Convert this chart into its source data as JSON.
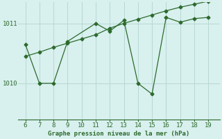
{
  "x_jagged": [
    6,
    7,
    8,
    9,
    11,
    12,
    13,
    14,
    15,
    16,
    17,
    18,
    19
  ],
  "y_jagged": [
    1010.65,
    1010.0,
    1010.0,
    1010.7,
    1011.0,
    1010.87,
    1011.05,
    1010.0,
    1009.82,
    1011.1,
    1011.02,
    1011.08,
    1011.1
  ],
  "x_smooth": [
    6,
    7,
    8,
    9,
    10,
    11,
    12,
    13,
    14,
    15,
    16,
    17,
    18,
    19
  ],
  "y_smooth": [
    1010.45,
    1010.52,
    1010.6,
    1010.67,
    1010.74,
    1010.81,
    1010.92,
    1011.0,
    1011.07,
    1011.14,
    1011.21,
    1011.27,
    1011.32,
    1011.37
  ],
  "line_color": "#2d6a2d",
  "bg_color": "#d8f0ee",
  "grid_color": "#b8d8d4",
  "xlabel": "Graphe pression niveau de la mer (hPa)",
  "yticks": [
    1010,
    1011
  ],
  "xticks": [
    6,
    7,
    8,
    9,
    10,
    11,
    12,
    13,
    14,
    15,
    16,
    17,
    18,
    19
  ],
  "xlim": [
    5.5,
    19.8
  ],
  "ylim": [
    1009.4,
    1011.35
  ]
}
